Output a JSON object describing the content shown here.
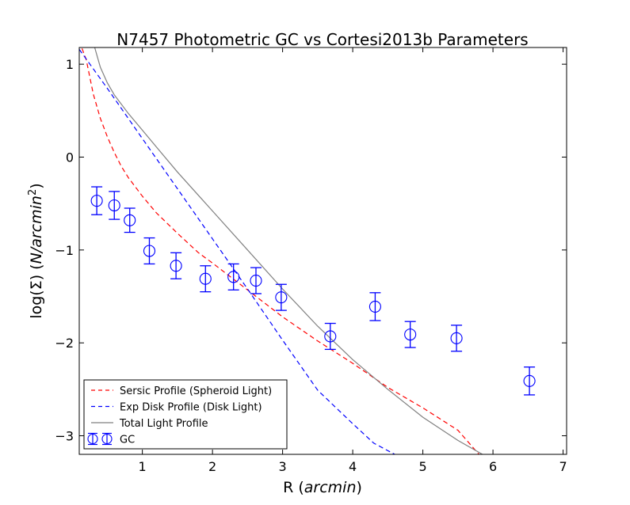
{
  "chart_data": {
    "type": "line",
    "title": "N7457 Photometric GC vs Cortesi2013b Parameters",
    "xlabel": "R (arcmin)",
    "ylabel": "log(Σ) (N/arcmin²)",
    "xlim": [
      0.1,
      7.05
    ],
    "ylim": [
      -3.2,
      1.18
    ],
    "x_ticks": [
      1,
      2,
      3,
      4,
      5,
      6,
      7
    ],
    "y_ticks": [
      1,
      0,
      -1,
      -2,
      -3
    ],
    "x_tick_labels": [
      "1",
      "2",
      "3",
      "4",
      "5",
      "6",
      "7"
    ],
    "y_tick_labels": [
      "1",
      "0",
      "−1",
      "−2",
      "−3"
    ],
    "grid": false,
    "legend_position": "lower-left",
    "series": [
      {
        "name": "Sersic Profile (Spheroid Light)",
        "kind": "line",
        "color": "#ff0000",
        "linestyle": "dashed",
        "x": [
          0.1,
          0.2,
          0.3,
          0.4,
          0.5,
          0.6,
          0.7,
          0.8,
          1.0,
          1.2,
          1.5,
          1.8,
          2.0,
          2.5,
          3.0,
          3.5,
          4.0,
          4.5,
          5.0,
          5.5,
          5.8
        ],
        "y": [
          1.25,
          1.05,
          0.68,
          0.42,
          0.22,
          0.05,
          -0.1,
          -0.22,
          -0.42,
          -0.6,
          -0.82,
          -1.03,
          -1.14,
          -1.43,
          -1.72,
          -1.98,
          -2.22,
          -2.48,
          -2.7,
          -2.94,
          -3.2
        ]
      },
      {
        "name": "Exp Disk Profile (Disk Light)",
        "kind": "line",
        "color": "#0000ff",
        "linestyle": "dashed",
        "x": [
          0.1,
          0.5,
          1.0,
          1.5,
          2.0,
          2.5,
          3.0,
          3.5,
          4.0,
          4.3,
          4.6
        ],
        "y": [
          1.16,
          0.74,
          0.2,
          -0.34,
          -0.88,
          -1.42,
          -1.97,
          -2.51,
          -2.87,
          -3.08,
          -3.2
        ]
      },
      {
        "name": "Total Light Profile",
        "kind": "line",
        "color": "#808080",
        "linestyle": "solid",
        "x": [
          0.32,
          0.4,
          0.5,
          0.6,
          0.8,
          1.0,
          1.2,
          1.5,
          2.0,
          2.5,
          3.0,
          3.5,
          4.0,
          4.5,
          5.0,
          5.5,
          5.85
        ],
        "y": [
          1.18,
          0.97,
          0.8,
          0.67,
          0.47,
          0.29,
          0.11,
          -0.16,
          -0.58,
          -1.0,
          -1.42,
          -1.82,
          -2.18,
          -2.5,
          -2.8,
          -3.05,
          -3.2
        ]
      },
      {
        "name": "GC",
        "kind": "errorbar",
        "color": "#0000ff",
        "marker": "open-circle",
        "x": [
          0.35,
          0.6,
          0.82,
          1.1,
          1.48,
          1.9,
          2.3,
          2.62,
          2.98,
          3.68,
          4.32,
          4.82,
          5.48,
          6.52
        ],
        "y": [
          -0.47,
          -0.52,
          -0.68,
          -1.01,
          -1.17,
          -1.31,
          -1.29,
          -1.33,
          -1.51,
          -1.93,
          -1.61,
          -1.91,
          -1.95,
          -2.41
        ],
        "yerr": [
          0.15,
          0.15,
          0.13,
          0.14,
          0.14,
          0.14,
          0.14,
          0.14,
          0.14,
          0.14,
          0.15,
          0.14,
          0.14,
          0.15
        ]
      }
    ]
  }
}
